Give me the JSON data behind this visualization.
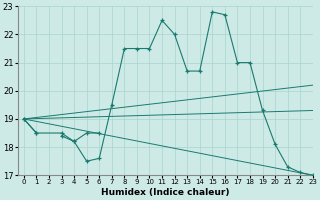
{
  "xlabel": "Humidex (Indice chaleur)",
  "x": [
    0,
    1,
    2,
    3,
    4,
    5,
    6,
    7,
    8,
    9,
    10,
    11,
    12,
    13,
    14,
    15,
    16,
    17,
    18,
    19,
    20,
    21,
    22,
    23
  ],
  "line_main": [
    19.0,
    18.5,
    null,
    18.5,
    18.2,
    17.5,
    17.6,
    19.5,
    21.5,
    21.5,
    21.5,
    22.5,
    22.0,
    20.7,
    20.7,
    22.8,
    22.7,
    21.0,
    21.0,
    19.3,
    18.1,
    17.3,
    17.1,
    17.0
  ],
  "line_short": [
    19.0,
    18.5,
    null,
    18.4,
    18.2,
    18.5,
    18.5,
    null,
    null,
    null,
    null,
    null,
    null,
    null,
    null,
    null,
    null,
    null,
    null,
    null,
    null,
    null,
    null,
    null
  ],
  "straight_lines": [
    [
      [
        0,
        19.0
      ],
      [
        23,
        20.2
      ]
    ],
    [
      [
        0,
        19.0
      ],
      [
        19,
        19.5
      ],
      [
        23,
        19.3
      ]
    ],
    [
      [
        0,
        19.0
      ],
      [
        23,
        17.0
      ]
    ]
  ],
  "ylim": [
    17,
    23
  ],
  "xlim": [
    -0.5,
    23
  ],
  "yticks": [
    17,
    18,
    19,
    20,
    21,
    22,
    23
  ],
  "xticks": [
    0,
    1,
    2,
    3,
    4,
    5,
    6,
    7,
    8,
    9,
    10,
    11,
    12,
    13,
    14,
    15,
    16,
    17,
    18,
    19,
    20,
    21,
    22,
    23
  ],
  "line_color": "#1a7a6e",
  "bg_color": "#ceeae7",
  "grid_color": "#aad4cf"
}
